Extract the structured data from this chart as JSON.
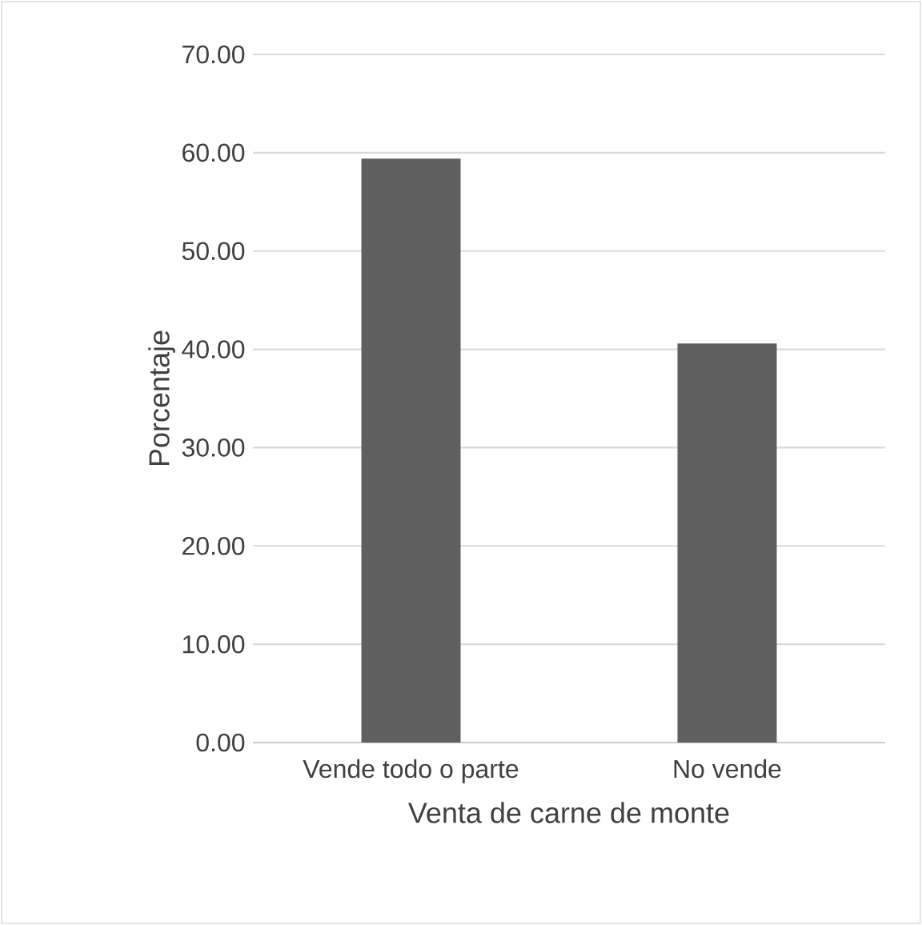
{
  "chart_data": {
    "type": "bar",
    "xlabel": "Venta de carne de monte",
    "ylabel": "Porcentaje",
    "categories": [
      "Vende todo o parte",
      "No vende"
    ],
    "values": [
      59.4,
      40.6
    ],
    "color": "#5f5f5f",
    "ylim": [
      0,
      70
    ],
    "yticks": [
      {
        "value": 0,
        "label": "0.00"
      },
      {
        "value": 10,
        "label": "10.00"
      },
      {
        "value": 20,
        "label": "20.00"
      },
      {
        "value": 30,
        "label": "30.00"
      },
      {
        "value": 40,
        "label": "40.00"
      },
      {
        "value": 50,
        "label": "50.00"
      },
      {
        "value": 60,
        "label": "60.00"
      },
      {
        "value": 70,
        "label": "70.00"
      }
    ],
    "grid": "y"
  }
}
